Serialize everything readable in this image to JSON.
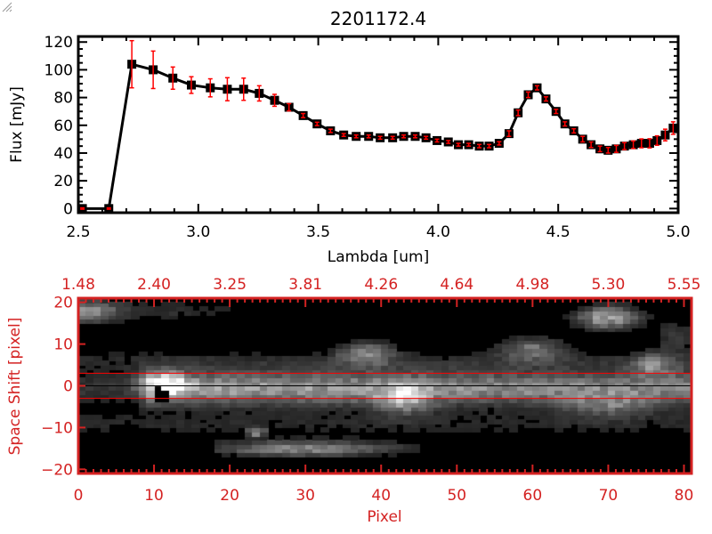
{
  "chart_data": [
    {
      "type": "line",
      "title": "2201172.4",
      "xlabel": "Lambda [um]",
      "ylabel": "Flux [mJy]",
      "xlim": [
        2.5,
        5.0
      ],
      "ylim": [
        -3,
        124
      ],
      "xticks": [
        "2.5",
        "3.0",
        "3.5",
        "4.0",
        "4.5",
        "5.0"
      ],
      "yticks": [
        "0",
        "20",
        "40",
        "60",
        "80",
        "100",
        "120"
      ],
      "grid": false,
      "colors": {
        "line": "#000000",
        "marker": "#000000",
        "errorbar": "#ff0000"
      },
      "marker": "square",
      "x": [
        2.517,
        2.627,
        2.723,
        2.812,
        2.894,
        2.971,
        3.05,
        3.121,
        3.189,
        3.254,
        3.318,
        3.378,
        3.437,
        3.495,
        3.551,
        3.606,
        3.658,
        3.71,
        3.758,
        3.81,
        3.856,
        3.904,
        3.949,
        3.995,
        4.042,
        4.084,
        4.127,
        4.171,
        4.212,
        4.254,
        4.295,
        4.333,
        4.375,
        4.412,
        4.449,
        4.491,
        4.528,
        4.565,
        4.602,
        4.637,
        4.674,
        4.708,
        4.742,
        4.776,
        4.813,
        4.847,
        4.881,
        4.912,
        4.946,
        4.979
      ],
      "y": [
        0,
        0,
        104,
        100,
        94,
        89,
        87,
        86,
        86,
        83,
        78,
        73,
        67,
        61,
        56,
        53,
        52,
        52,
        51,
        51,
        52,
        52,
        51,
        49,
        48,
        46,
        46,
        45,
        45,
        47,
        54,
        69,
        82,
        87,
        79,
        70,
        61,
        56,
        50,
        46,
        43,
        42,
        43,
        45,
        46,
        47,
        47,
        49,
        53,
        58
      ],
      "yerr": [
        0.5,
        0.5,
        17,
        13.5,
        8,
        6,
        6.5,
        8.3,
        8,
        5.5,
        4.3,
        2.6,
        1.5,
        1.2,
        1.2,
        1,
        1,
        1,
        1,
        1,
        1,
        1,
        1,
        1,
        1,
        1,
        1,
        1.2,
        1.2,
        1.2,
        2,
        2,
        2,
        1.5,
        1.5,
        1.5,
        1.5,
        1.5,
        2,
        2,
        2,
        2,
        2.5,
        2.5,
        2.7,
        3.2,
        3.3,
        3.4,
        4.2,
        4.5
      ]
    },
    {
      "type": "heatmap",
      "xlabel": "Pixel",
      "ylabel": "Space Shift [pixel]",
      "xlim": [
        0,
        81
      ],
      "ylim": [
        -21,
        21
      ],
      "xticks": [
        "0",
        "10",
        "20",
        "30",
        "40",
        "50",
        "60",
        "70",
        "80"
      ],
      "top_xticks": [
        "1.48",
        "2.40",
        "3.25",
        "3.81",
        "4.26",
        "4.64",
        "4.98",
        "5.30",
        "5.55"
      ],
      "yticks": [
        "20",
        "10",
        "0",
        "-10",
        "-20"
      ],
      "colormap": "grayscale",
      "overlay_lines": [
        {
          "y": 3,
          "color": "#ff0000"
        },
        {
          "y": 0,
          "color": "#000000"
        },
        {
          "y": -3,
          "color": "#ff0000"
        }
      ],
      "colors": {
        "axes": "#d42222"
      }
    }
  ]
}
